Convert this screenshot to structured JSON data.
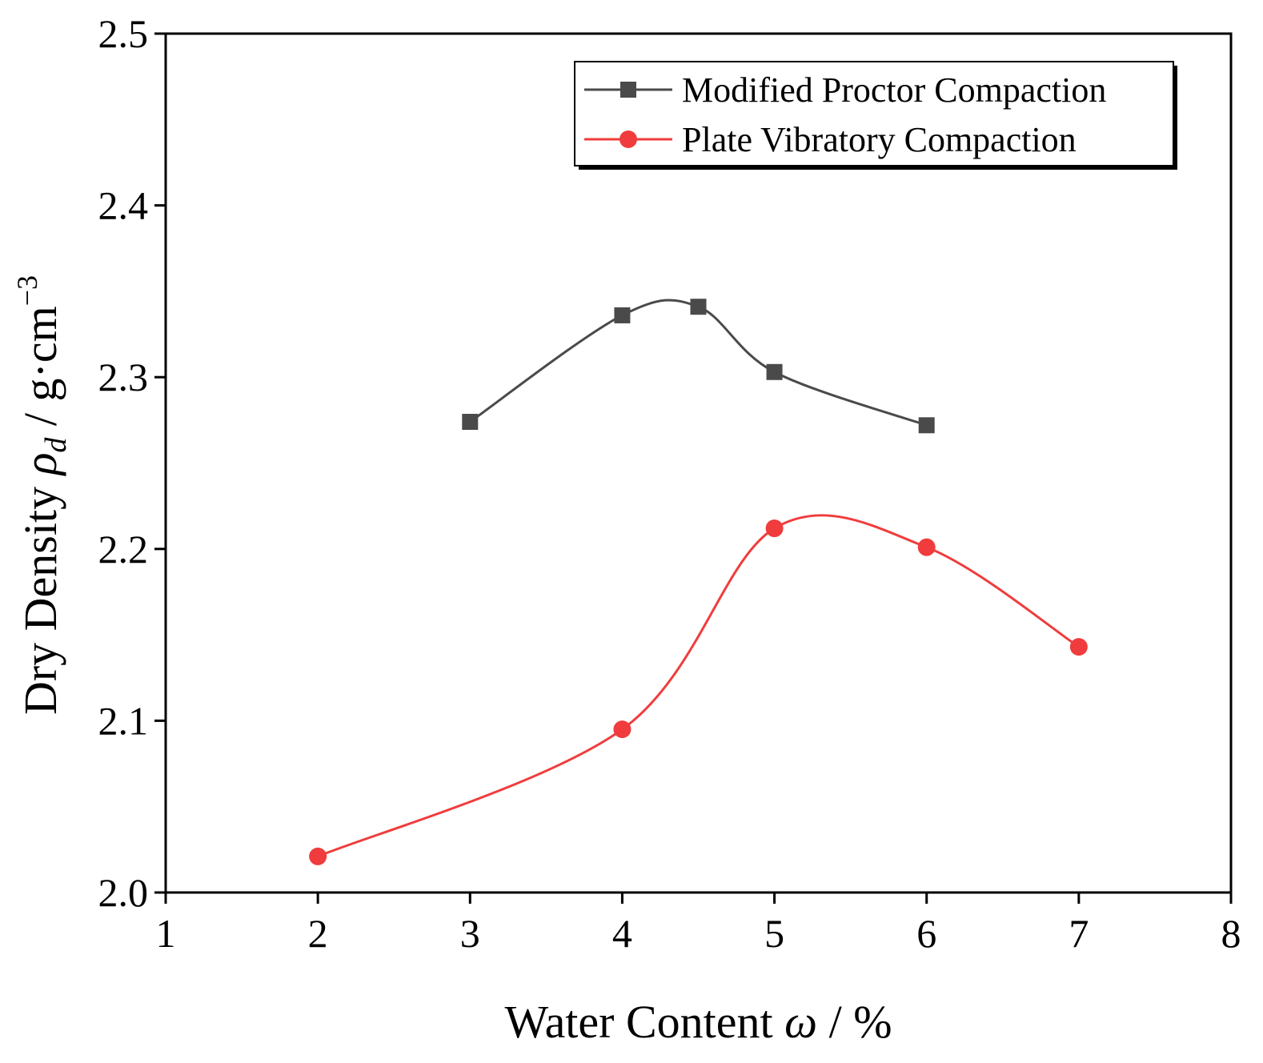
{
  "chart_data": {
    "type": "line",
    "title": "",
    "xlabel": {
      "main": "Water Content ",
      "symbol": "ω",
      "unit": " / %"
    },
    "ylabel": {
      "main": "Dry Density ",
      "symbol": "ρ",
      "subscript": "d",
      "unit": "  / g·cm",
      "superscript": "−3"
    },
    "xlim": [
      1,
      8
    ],
    "ylim": [
      2.0,
      2.5
    ],
    "xticks": [
      "1",
      "2",
      "3",
      "4",
      "5",
      "6",
      "7",
      "8"
    ],
    "yticks": [
      "2.0",
      "2.1",
      "2.2",
      "2.3",
      "2.4",
      "2.5"
    ],
    "grid": false,
    "legend_position": "top-right",
    "series": [
      {
        "name": "Modified Proctor Compaction",
        "marker": "square",
        "color": "#4a4a4a",
        "x": [
          3,
          4,
          4.5,
          5,
          6
        ],
        "y": [
          2.274,
          2.336,
          2.341,
          2.303,
          2.272
        ]
      },
      {
        "name": "Plate Vibratory Compaction",
        "marker": "circle",
        "color": "#f03c3c",
        "x": [
          2,
          4,
          5,
          6,
          7
        ],
        "y": [
          2.021,
          2.095,
          2.212,
          2.201,
          2.143
        ]
      }
    ]
  }
}
